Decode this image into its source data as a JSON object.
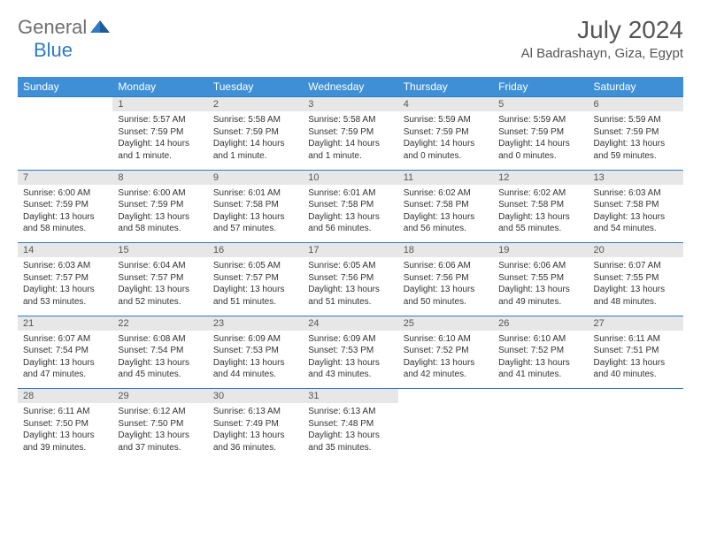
{
  "brand": {
    "part1": "General",
    "part2": "Blue"
  },
  "title": "July 2024",
  "location": "Al Badrashayn, Giza, Egypt",
  "colors": {
    "header_bg": "#3f8fd6",
    "header_text": "#ffffff",
    "numrow_bg": "#e7e7e7",
    "row_border": "#2f7ac4",
    "logo_grey": "#6f6f6f",
    "logo_blue": "#2f7ac4"
  },
  "dayHeaders": [
    "Sunday",
    "Monday",
    "Tuesday",
    "Wednesday",
    "Thursday",
    "Friday",
    "Saturday"
  ],
  "weeks": [
    {
      "nums": [
        "",
        "1",
        "2",
        "3",
        "4",
        "5",
        "6"
      ],
      "cells": [
        null,
        {
          "sunrise": "5:57 AM",
          "sunset": "7:59 PM",
          "daylight": "14 hours and 1 minute."
        },
        {
          "sunrise": "5:58 AM",
          "sunset": "7:59 PM",
          "daylight": "14 hours and 1 minute."
        },
        {
          "sunrise": "5:58 AM",
          "sunset": "7:59 PM",
          "daylight": "14 hours and 1 minute."
        },
        {
          "sunrise": "5:59 AM",
          "sunset": "7:59 PM",
          "daylight": "14 hours and 0 minutes."
        },
        {
          "sunrise": "5:59 AM",
          "sunset": "7:59 PM",
          "daylight": "14 hours and 0 minutes."
        },
        {
          "sunrise": "5:59 AM",
          "sunset": "7:59 PM",
          "daylight": "13 hours and 59 minutes."
        }
      ]
    },
    {
      "nums": [
        "7",
        "8",
        "9",
        "10",
        "11",
        "12",
        "13"
      ],
      "cells": [
        {
          "sunrise": "6:00 AM",
          "sunset": "7:59 PM",
          "daylight": "13 hours and 58 minutes."
        },
        {
          "sunrise": "6:00 AM",
          "sunset": "7:59 PM",
          "daylight": "13 hours and 58 minutes."
        },
        {
          "sunrise": "6:01 AM",
          "sunset": "7:58 PM",
          "daylight": "13 hours and 57 minutes."
        },
        {
          "sunrise": "6:01 AM",
          "sunset": "7:58 PM",
          "daylight": "13 hours and 56 minutes."
        },
        {
          "sunrise": "6:02 AM",
          "sunset": "7:58 PM",
          "daylight": "13 hours and 56 minutes."
        },
        {
          "sunrise": "6:02 AM",
          "sunset": "7:58 PM",
          "daylight": "13 hours and 55 minutes."
        },
        {
          "sunrise": "6:03 AM",
          "sunset": "7:58 PM",
          "daylight": "13 hours and 54 minutes."
        }
      ]
    },
    {
      "nums": [
        "14",
        "15",
        "16",
        "17",
        "18",
        "19",
        "20"
      ],
      "cells": [
        {
          "sunrise": "6:03 AM",
          "sunset": "7:57 PM",
          "daylight": "13 hours and 53 minutes."
        },
        {
          "sunrise": "6:04 AM",
          "sunset": "7:57 PM",
          "daylight": "13 hours and 52 minutes."
        },
        {
          "sunrise": "6:05 AM",
          "sunset": "7:57 PM",
          "daylight": "13 hours and 51 minutes."
        },
        {
          "sunrise": "6:05 AM",
          "sunset": "7:56 PM",
          "daylight": "13 hours and 51 minutes."
        },
        {
          "sunrise": "6:06 AM",
          "sunset": "7:56 PM",
          "daylight": "13 hours and 50 minutes."
        },
        {
          "sunrise": "6:06 AM",
          "sunset": "7:55 PM",
          "daylight": "13 hours and 49 minutes."
        },
        {
          "sunrise": "6:07 AM",
          "sunset": "7:55 PM",
          "daylight": "13 hours and 48 minutes."
        }
      ]
    },
    {
      "nums": [
        "21",
        "22",
        "23",
        "24",
        "25",
        "26",
        "27"
      ],
      "cells": [
        {
          "sunrise": "6:07 AM",
          "sunset": "7:54 PM",
          "daylight": "13 hours and 47 minutes."
        },
        {
          "sunrise": "6:08 AM",
          "sunset": "7:54 PM",
          "daylight": "13 hours and 45 minutes."
        },
        {
          "sunrise": "6:09 AM",
          "sunset": "7:53 PM",
          "daylight": "13 hours and 44 minutes."
        },
        {
          "sunrise": "6:09 AM",
          "sunset": "7:53 PM",
          "daylight": "13 hours and 43 minutes."
        },
        {
          "sunrise": "6:10 AM",
          "sunset": "7:52 PM",
          "daylight": "13 hours and 42 minutes."
        },
        {
          "sunrise": "6:10 AM",
          "sunset": "7:52 PM",
          "daylight": "13 hours and 41 minutes."
        },
        {
          "sunrise": "6:11 AM",
          "sunset": "7:51 PM",
          "daylight": "13 hours and 40 minutes."
        }
      ]
    },
    {
      "nums": [
        "28",
        "29",
        "30",
        "31",
        "",
        "",
        ""
      ],
      "cells": [
        {
          "sunrise": "6:11 AM",
          "sunset": "7:50 PM",
          "daylight": "13 hours and 39 minutes."
        },
        {
          "sunrise": "6:12 AM",
          "sunset": "7:50 PM",
          "daylight": "13 hours and 37 minutes."
        },
        {
          "sunrise": "6:13 AM",
          "sunset": "7:49 PM",
          "daylight": "13 hours and 36 minutes."
        },
        {
          "sunrise": "6:13 AM",
          "sunset": "7:48 PM",
          "daylight": "13 hours and 35 minutes."
        },
        null,
        null,
        null
      ]
    }
  ],
  "labels": {
    "sunrise": "Sunrise: ",
    "sunset": "Sunset: ",
    "daylight": "Daylight: "
  }
}
